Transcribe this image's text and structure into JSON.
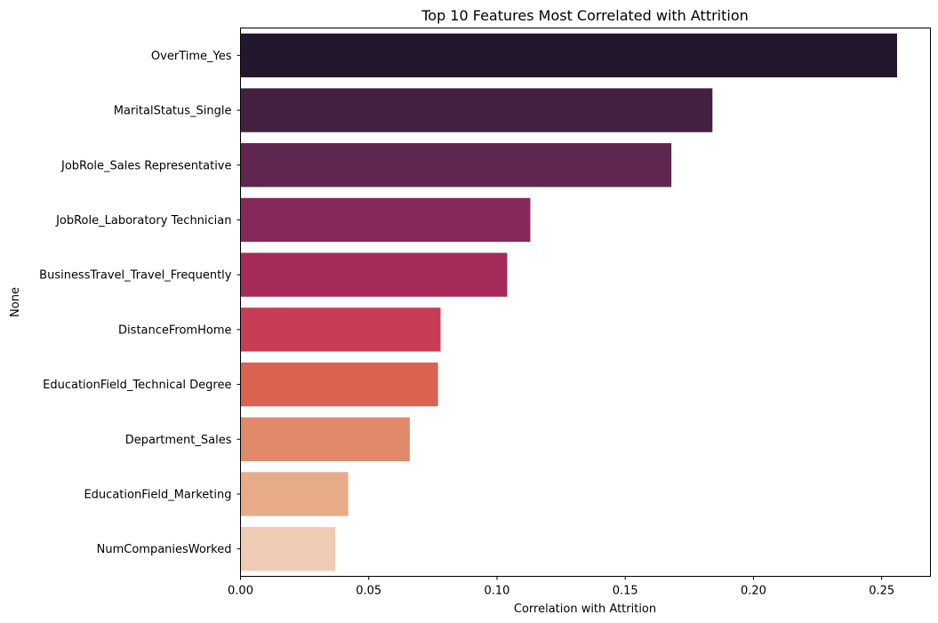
{
  "chart_data": {
    "type": "bar",
    "orientation": "horizontal",
    "title": "Top 10 Features Most Correlated with Attrition",
    "xlabel": "Correlation with Attrition",
    "ylabel": "None",
    "xlim": [
      0,
      0.269
    ],
    "xticks": [
      0,
      0.05,
      0.1,
      0.15,
      0.2,
      0.25
    ],
    "xtick_labels": [
      "0.00",
      "0.05",
      "0.10",
      "0.15",
      "0.20",
      "0.25"
    ],
    "grid": false,
    "categories": [
      "OverTime_Yes",
      "MaritalStatus_Single",
      "JobRole_Sales Representative",
      "JobRole_Laboratory Technician",
      "BusinessTravel_Travel_Frequently",
      "DistanceFromHome",
      "EducationField_Technical Degree",
      "Department_Sales",
      "EducationField_Marketing",
      "NumCompaniesWorked"
    ],
    "values": [
      0.256,
      0.184,
      0.168,
      0.113,
      0.104,
      0.078,
      0.077,
      0.066,
      0.042,
      0.037
    ],
    "colors": [
      "#22172d",
      "#42203f",
      "#612650",
      "#85295a",
      "#a52a5a",
      "#c73d55",
      "#d96251",
      "#e08a6b",
      "#e8ab8a",
      "#efcbb4"
    ]
  }
}
